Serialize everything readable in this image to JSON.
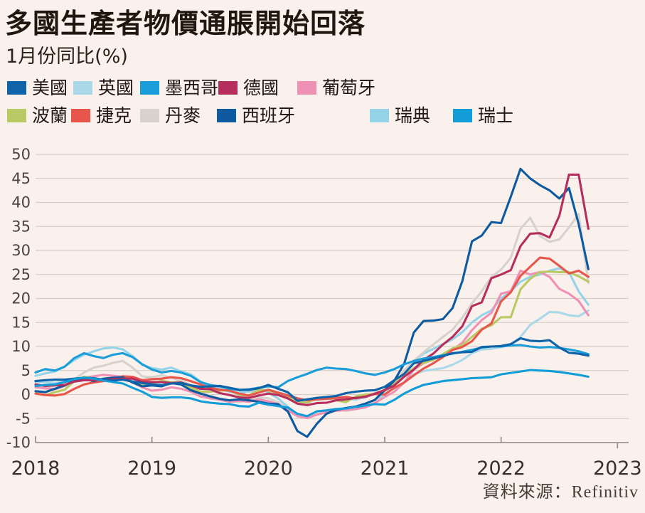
{
  "title": "多國生產者物價通脹開始回落",
  "subtitle": "1月份同比(%)",
  "source": "資料來源：Refinitiv",
  "colors": {
    "background": "#faf1ec",
    "grid": "#d5cfc8",
    "axis": "#8f8880",
    "tick_label": "#4b443d",
    "year_label": "#39322b"
  },
  "chart_data": {
    "type": "line",
    "title": "多國生產者物價通脹開始回落",
    "subtitle_unit": "1月份同比(%)",
    "x_start": "2018-01",
    "x_end": "2022-10",
    "x_tick_labels": [
      "2018",
      "2019",
      "2020",
      "2021",
      "2022",
      "2023"
    ],
    "y_ticks": [
      50,
      45,
      40,
      35,
      30,
      25,
      20,
      15,
      10,
      5,
      0,
      -5,
      -10
    ],
    "ylim": [
      -10,
      50
    ],
    "grid": true,
    "legend_rows": [
      [
        "usa",
        "uk",
        "mexico",
        "germany",
        "portugal"
      ],
      [
        "poland",
        "czech",
        "denmark",
        "spain",
        "sweden",
        "switzerland"
      ]
    ],
    "draw_order": [
      "uk",
      "sweden",
      "denmark",
      "portugal",
      "poland",
      "czech",
      "spain",
      "germany",
      "mexico",
      "usa",
      "switzerland"
    ],
    "series": [
      {
        "id": "usa",
        "label": "美國",
        "color": "#0f63a8",
        "values": [
          2.8,
          3.0,
          3.1,
          3.1,
          3.3,
          3.5,
          3.4,
          3.1,
          2.9,
          3.1,
          2.7,
          2.4,
          2.1,
          1.9,
          2.3,
          2.4,
          1.9,
          1.6,
          1.7,
          1.8,
          1.4,
          1.0,
          1.0,
          1.3,
          2.0,
          1.2,
          0.5,
          -1.3,
          -1.0,
          -0.7,
          -0.5,
          -0.3,
          0.3,
          0.6,
          0.8,
          0.9,
          1.6,
          3.0,
          4.3,
          6.5,
          7.0,
          7.5,
          8.0,
          8.6,
          8.8,
          8.9,
          9.9,
          10.0,
          10.1,
          10.5,
          11.7,
          11.2,
          11.1,
          11.3,
          9.8,
          8.7,
          8.5,
          8.1
        ]
      },
      {
        "id": "uk",
        "label": "英國",
        "color": "#abd8e8",
        "values": [
          2.6,
          2.6,
          2.4,
          2.7,
          3.0,
          3.3,
          3.1,
          2.9,
          3.1,
          3.3,
          3.0,
          2.5,
          2.1,
          2.4,
          2.4,
          2.1,
          1.9,
          1.7,
          1.9,
          1.7,
          1.3,
          0.8,
          0.6,
          0.9,
          1.0,
          0.4,
          0.0,
          -0.7,
          -1.4,
          -1.1,
          -0.9,
          -0.7,
          -0.9,
          -1.1,
          -0.5,
          0.2,
          0.9,
          1.2,
          2.5,
          4.2,
          4.9,
          5.2,
          5.5,
          6.2,
          7.2,
          8.6,
          9.4,
          9.5,
          9.9,
          10.3,
          12.0,
          14.5,
          15.8,
          17.2,
          17.1,
          16.5,
          16.3,
          17.5
        ]
      },
      {
        "id": "mexico",
        "label": "墨西哥",
        "color": "#1b9dd9",
        "values": [
          4.6,
          5.3,
          5.0,
          5.8,
          7.6,
          8.6,
          8.0,
          7.6,
          8.3,
          8.6,
          7.8,
          6.3,
          5.2,
          4.6,
          4.9,
          4.6,
          3.9,
          2.6,
          2.0,
          1.7,
          1.2,
          0.9,
          1.1,
          1.4,
          1.7,
          1.5,
          2.8,
          3.6,
          4.3,
          5.1,
          5.6,
          5.4,
          5.3,
          4.9,
          4.4,
          4.1,
          4.6,
          5.3,
          6.3,
          7.0,
          7.5,
          7.8,
          8.2,
          8.5,
          8.9,
          9.3,
          9.8,
          10.0,
          10.0,
          10.2,
          10.3,
          10.0,
          9.8,
          9.9,
          9.7,
          9.4,
          9.0,
          8.4
        ]
      },
      {
        "id": "germany",
        "label": "德國",
        "color": "#b62e5d",
        "values": [
          2.1,
          1.8,
          1.9,
          2.0,
          2.7,
          3.0,
          3.0,
          3.1,
          3.2,
          3.3,
          3.3,
          2.7,
          2.6,
          2.6,
          2.4,
          2.5,
          1.9,
          1.2,
          1.1,
          0.3,
          -0.1,
          -0.6,
          -0.7,
          -0.2,
          0.2,
          -0.1,
          -0.8,
          -1.9,
          -2.2,
          -1.8,
          -1.7,
          -1.2,
          -1.0,
          -0.7,
          -0.5,
          0.2,
          0.9,
          1.9,
          3.7,
          5.2,
          7.2,
          8.5,
          10.4,
          12.0,
          14.2,
          18.4,
          19.2,
          24.2,
          25.0,
          25.9,
          30.9,
          33.5,
          33.6,
          32.7,
          37.2,
          45.8,
          45.8,
          34.5
        ]
      },
      {
        "id": "portugal",
        "label": "葡萄牙",
        "color": "#ef90b5",
        "values": [
          1.5,
          1.3,
          1.1,
          1.8,
          2.8,
          3.5,
          3.8,
          4.1,
          3.9,
          3.7,
          2.6,
          1.5,
          0.8,
          1.0,
          1.5,
          1.2,
          0.6,
          -0.4,
          -0.8,
          -1.1,
          -1.5,
          -1.3,
          -1.5,
          -1.0,
          -1.4,
          -2.0,
          -3.3,
          -4.5,
          -4.9,
          -4.2,
          -3.7,
          -3.4,
          -3.2,
          -3.0,
          -2.7,
          -1.8,
          -0.5,
          0.6,
          2.5,
          5.2,
          6.5,
          7.3,
          8.2,
          9.3,
          10.8,
          13.4,
          15.5,
          17.0,
          21.0,
          21.5,
          25.8,
          25.0,
          25.5,
          24.5,
          22.0,
          21.0,
          19.5,
          16.5
        ]
      },
      {
        "id": "poland",
        "label": "波蘭",
        "color": "#b9ca65",
        "values": [
          0.2,
          -0.1,
          0.5,
          1.0,
          2.8,
          3.7,
          3.4,
          3.0,
          2.9,
          3.2,
          2.7,
          2.1,
          2.2,
          2.9,
          2.5,
          2.6,
          1.4,
          0.6,
          0.6,
          0.8,
          0.9,
          -0.1,
          -0.2,
          1.0,
          0.8,
          0.2,
          -0.5,
          -1.4,
          -1.7,
          -0.8,
          -0.6,
          -1.2,
          -1.6,
          -0.4,
          0.0,
          0.1,
          1.0,
          2.2,
          3.9,
          5.5,
          6.6,
          7.2,
          8.4,
          9.6,
          10.3,
          12.0,
          13.7,
          14.4,
          16.1,
          16.1,
          21.9,
          24.1,
          25.5,
          25.6,
          25.5,
          25.5,
          24.6,
          23.5
        ]
      },
      {
        "id": "czech",
        "label": "捷克",
        "color": "#e8564b",
        "values": [
          0.2,
          -0.1,
          -0.2,
          0.1,
          1.2,
          2.1,
          2.5,
          2.8,
          3.2,
          3.8,
          3.7,
          3.0,
          3.2,
          3.3,
          3.6,
          3.4,
          2.8,
          2.1,
          1.4,
          1.0,
          0.8,
          0.2,
          -0.2,
          0.4,
          1.0,
          0.4,
          -0.2,
          -0.8,
          -1.2,
          -1.0,
          -0.9,
          -0.7,
          -0.5,
          -0.8,
          -0.4,
          0.1,
          0.0,
          1.4,
          2.5,
          4.0,
          5.4,
          6.5,
          7.8,
          9.3,
          9.9,
          11.1,
          13.5,
          14.8,
          19.4,
          21.3,
          24.7,
          26.6,
          28.5,
          28.3,
          26.8,
          25.2,
          25.8,
          24.5
        ]
      },
      {
        "id": "denmark",
        "label": "丹麥",
        "color": "#d7d2cc",
        "values": [
          1.6,
          1.4,
          1.2,
          1.9,
          3.2,
          4.6,
          5.6,
          6.0,
          6.6,
          7.0,
          5.6,
          3.8,
          3.6,
          4.0,
          3.5,
          2.9,
          2.0,
          0.6,
          -0.2,
          -0.8,
          -1.3,
          -1.6,
          -1.1,
          -0.6,
          -0.8,
          -1.6,
          -2.9,
          -4.2,
          -4.8,
          -3.9,
          -3.3,
          -3.1,
          -3.4,
          -3.1,
          -2.5,
          -1.3,
          0.6,
          2.3,
          5.0,
          7.0,
          8.8,
          10.4,
          12.0,
          13.5,
          16.0,
          19.0,
          21.5,
          24.5,
          26.0,
          28.5,
          34.5,
          36.8,
          33.0,
          31.8,
          32.3,
          34.8,
          37.6,
          23.2
        ]
      },
      {
        "id": "spain",
        "label": "西班牙",
        "color": "#0d5aa0",
        "values": [
          0.7,
          0.5,
          1.2,
          1.9,
          2.9,
          3.2,
          2.8,
          3.3,
          3.5,
          3.6,
          2.5,
          1.7,
          1.9,
          1.7,
          2.4,
          2.1,
          0.9,
          0.2,
          -0.4,
          -0.9,
          -1.2,
          -1.0,
          -1.2,
          -1.5,
          -1.9,
          -2.0,
          -3.5,
          -7.6,
          -8.8,
          -6.1,
          -4.0,
          -3.2,
          -2.8,
          -2.5,
          -1.9,
          -1.1,
          0.9,
          2.9,
          6.4,
          12.9,
          15.3,
          15.4,
          15.7,
          18.0,
          23.6,
          31.9,
          33.1,
          35.9,
          35.7,
          41.2,
          47.0,
          45.0,
          43.6,
          42.5,
          40.8,
          43.0,
          35.5,
          26.1
        ]
      },
      {
        "id": "sweden",
        "label": "瑞典",
        "color": "#95d3e9",
        "values": [
          3.9,
          4.4,
          4.8,
          5.8,
          7.2,
          8.3,
          9.0,
          9.6,
          9.8,
          9.4,
          8.0,
          6.2,
          5.5,
          5.2,
          5.6,
          4.8,
          4.2,
          2.7,
          1.8,
          1.2,
          0.6,
          0.2,
          0.8,
          1.5,
          0.4,
          -0.8,
          -2.5,
          -4.2,
          -4.6,
          -3.8,
          -3.5,
          -3.1,
          -3.3,
          -2.8,
          -2.2,
          -1.4,
          0.2,
          2.0,
          4.5,
          7.0,
          8.5,
          9.5,
          10.5,
          11.5,
          13.0,
          15.0,
          16.5,
          17.5,
          20.0,
          21.5,
          23.5,
          24.5,
          25.0,
          25.8,
          26.3,
          25.5,
          21.5,
          18.7
        ]
      },
      {
        "id": "switzerland",
        "label": "瑞士",
        "color": "#129dd8",
        "values": [
          1.8,
          2.0,
          2.1,
          2.6,
          3.2,
          3.5,
          3.3,
          2.9,
          2.6,
          2.3,
          1.4,
          0.6,
          -0.5,
          -0.7,
          -0.6,
          -0.6,
          -0.8,
          -1.4,
          -1.7,
          -1.9,
          -2.0,
          -2.4,
          -2.5,
          -1.7,
          -2.1,
          -2.4,
          -2.7,
          -4.0,
          -4.5,
          -3.5,
          -3.3,
          -3.0,
          -2.9,
          -2.6,
          -2.3,
          -2.0,
          -2.1,
          -1.1,
          0.2,
          1.2,
          2.0,
          2.4,
          2.8,
          3.0,
          3.2,
          3.4,
          3.5,
          3.6,
          4.2,
          4.5,
          4.8,
          5.1,
          5.0,
          4.9,
          4.7,
          4.4,
          4.1,
          3.7
        ]
      }
    ]
  }
}
